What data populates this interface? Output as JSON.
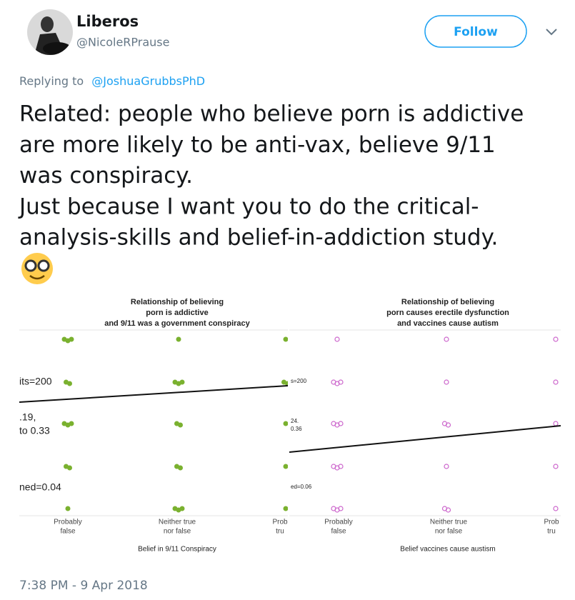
{
  "author": {
    "name": "Liberos",
    "handle": "@NicoleRPrause"
  },
  "follow_button": "Follow",
  "reply": {
    "prefix": "Replying to",
    "mention": "@JoshuaGrubbsPhD"
  },
  "tweet_lines": [
    "Related: people who believe porn is addictive",
    "are more likely to be anti-vax, believe 9/11",
    "was conspiracy.",
    "Just because I want you to do the critical-",
    "analysis-skills and belief-in-addiction study."
  ],
  "emoji": "🤓",
  "images": [
    {
      "title": [
        "Relationship of believing",
        "porn is addictive",
        "and 9/11 was a government conspiracy"
      ],
      "annotations": [
        "its=200",
        ".19,",
        "to 0.33",
        "ned=0.04"
      ],
      "x_categories": [
        [
          "Probably",
          "false"
        ],
        [
          "Neither true",
          "nor false"
        ],
        [
          "Prob",
          "tru"
        ]
      ],
      "x_label": "Belief in 9/11 Conspiracy"
    },
    {
      "title": [
        "Relationship of believing",
        "porn causes erectile dysfunction",
        "and vaccines cause autism"
      ],
      "annotations": [
        "s=200",
        "24.",
        "0.36",
        "ed=0.06"
      ],
      "x_categories": [
        [
          "Probably",
          "false"
        ],
        [
          "Neither true",
          "nor false"
        ],
        [
          "Prob",
          "tru"
        ]
      ],
      "x_label": "Belief vaccines cause austism"
    }
  ],
  "timestamp": "7:38 PM - 9 Apr 2018"
}
